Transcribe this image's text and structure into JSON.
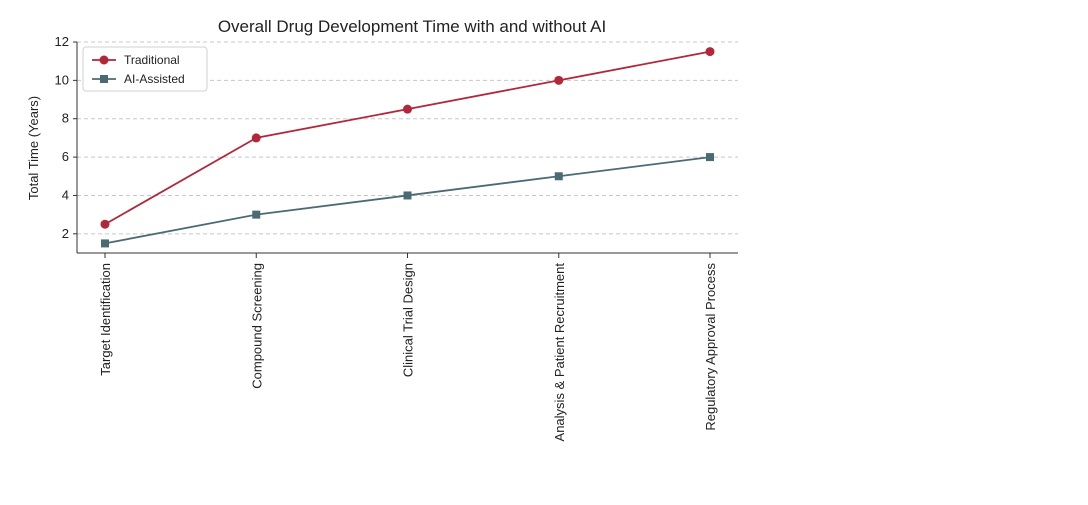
{
  "chart_data": {
    "type": "line",
    "title": "Overall Drug Development Time with and without AI",
    "xlabel": "",
    "ylabel": "Total Time (Years)",
    "categories": [
      "Target Identification",
      "Compound Screening",
      "Clinical Trial Design",
      "Analysis & Patient Recruitment",
      "Regulatory Approval Process"
    ],
    "ylim": [
      1,
      12
    ],
    "yticks": [
      2,
      4,
      6,
      8,
      10,
      12
    ],
    "grid": "horizontal dashed",
    "legend_position": "top-left",
    "series": [
      {
        "name": "Traditional",
        "values": [
          2.5,
          7,
          8.5,
          10,
          11.5
        ],
        "color": "#b0283a",
        "marker": "circle"
      },
      {
        "name": "AI-Assisted",
        "values": [
          1.5,
          3,
          4,
          5,
          6
        ],
        "color": "#4a6b73",
        "marker": "square"
      }
    ]
  }
}
